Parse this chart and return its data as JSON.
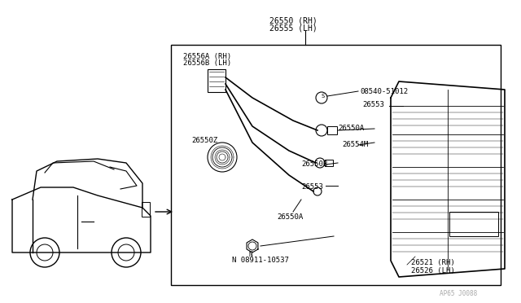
{
  "bg_color": "#ffffff",
  "border_color": "#000000",
  "line_color": "#000000",
  "text_color": "#000000",
  "fig_width": 6.4,
  "fig_height": 3.72,
  "dpi": 100,
  "watermark": "AP65 J0088",
  "labels": {
    "main_top": [
      "26550 (RH)",
      "26555 (LH)"
    ],
    "wiring": [
      "26556A (RH)",
      "26556B (LH)"
    ],
    "screw": "08540-51012",
    "part_26550A_top": "26550A",
    "part_26553_top": "26553",
    "part_26554M": "26554M",
    "part_26550B": "26550B",
    "part_26553_bot": "26553",
    "part_26550Z": "26550Z",
    "part_26550A_bot": "26550A",
    "nut": "N 08911-10537",
    "lamp_rh": "26521 (RH)",
    "lamp_lh": "26526 (LH)"
  }
}
